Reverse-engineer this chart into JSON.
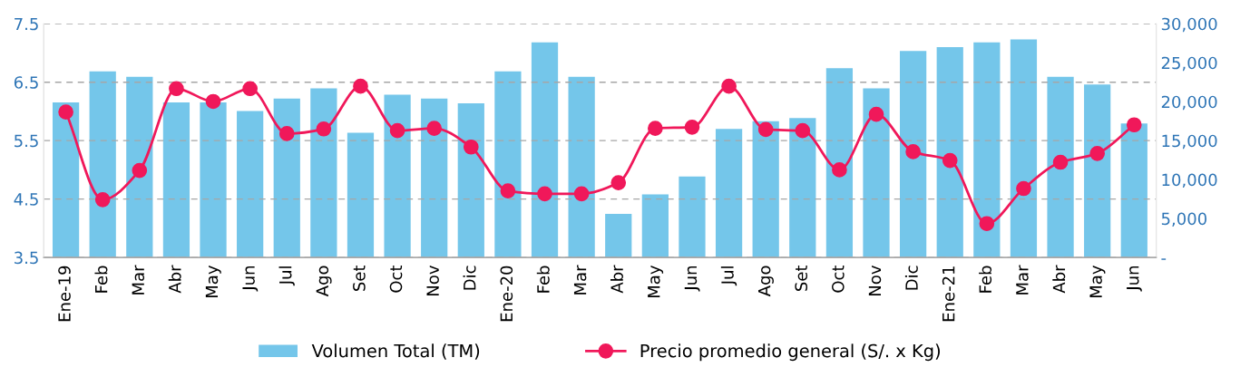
{
  "chart_data": {
    "type": "bar",
    "categories": [
      "Ene-19",
      "Feb",
      "Mar",
      "Abr",
      "May",
      "Jun",
      "Jul",
      "Ago",
      "Set",
      "Oct",
      "Nov",
      "Dic",
      "Ene-20",
      "Feb",
      "Mar",
      "Abr",
      "May",
      "Jun",
      "Jul",
      "Ago",
      "Set",
      "Oct",
      "Nov",
      "Dic",
      "Ene-21",
      "Feb",
      "Mar",
      "Abr",
      "May",
      "Jun"
    ],
    "series": [
      {
        "name": "Volumen Total (TM)",
        "axis": "y2",
        "color": "#74c6ea",
        "values": [
          19900,
          23900,
          23200,
          19900,
          19900,
          18800,
          20400,
          21700,
          16000,
          20900,
          20400,
          19800,
          23900,
          27600,
          23200,
          5600,
          8100,
          10400,
          16500,
          17500,
          17900,
          24300,
          21700,
          26500,
          27000,
          27600,
          28000,
          23200,
          22200,
          17200
        ]
      },
      {
        "name": "Precio promedio general (S/. x Kg)",
        "type": "line",
        "color": "#f0185a",
        "marker": "circle",
        "values": [
          5.99,
          4.49,
          4.99,
          6.39,
          6.17,
          6.39,
          5.62,
          5.7,
          6.43,
          5.67,
          5.71,
          5.39,
          4.64,
          4.59,
          4.59,
          4.78,
          5.71,
          5.73,
          6.43,
          5.69,
          5.67,
          5.0,
          5.95,
          5.31,
          5.16,
          4.08,
          4.68,
          5.13,
          5.28,
          5.77
        ]
      }
    ],
    "ylim": [
      3.5,
      7.5
    ],
    "yticks": [
      3.5,
      4.5,
      5.5,
      6.5,
      7.5
    ],
    "y2lim": [
      0,
      30000
    ],
    "y2ticks": [
      {
        "value": 0,
        "label": "-"
      },
      {
        "value": 5000,
        "label": "5,000"
      },
      {
        "value": 10000,
        "label": "10,000"
      },
      {
        "value": 15000,
        "label": "15,000"
      },
      {
        "value": 20000,
        "label": "20,000"
      },
      {
        "value": 25000,
        "label": "25,000"
      },
      {
        "value": 30000,
        "label": "30,000"
      }
    ],
    "grid": "y",
    "legend": "bottom"
  }
}
